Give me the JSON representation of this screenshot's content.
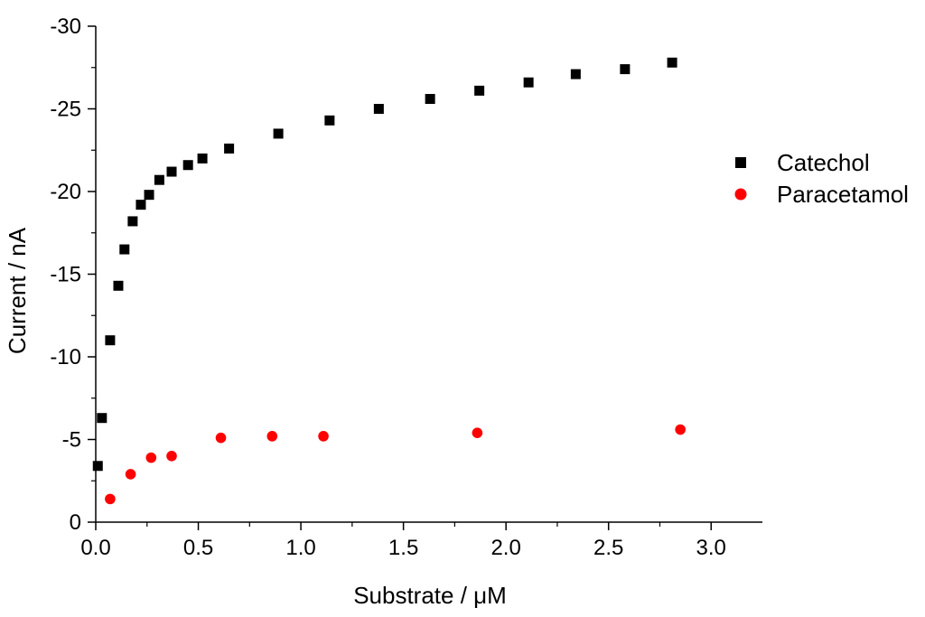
{
  "chart_data": {
    "type": "scatter",
    "title": "",
    "xlabel": "Substrate / μM",
    "ylabel": "Current / nA",
    "xlim": [
      0,
      3.25
    ],
    "ylim": [
      0,
      -30
    ],
    "y_axis_inverted": true,
    "x_ticks": [
      "0.0",
      "0.5",
      "1.0",
      "1.5",
      "2.0",
      "2.5",
      "3.0"
    ],
    "x_tick_values": [
      0,
      0.5,
      1.0,
      1.5,
      2.0,
      2.5,
      3.0
    ],
    "y_ticks": [
      "0",
      "-5",
      "-10",
      "-15",
      "-20",
      "-25",
      "-30"
    ],
    "y_tick_values": [
      0,
      -5,
      -10,
      -15,
      -20,
      -25,
      -30
    ],
    "grid": false,
    "legend_position": "right",
    "series": [
      {
        "name": "Catechol",
        "marker": "square",
        "color": "#000000",
        "x": [
          0.01,
          0.03,
          0.07,
          0.11,
          0.14,
          0.18,
          0.22,
          0.26,
          0.31,
          0.37,
          0.45,
          0.52,
          0.65,
          0.89,
          1.14,
          1.38,
          1.63,
          1.87,
          2.11,
          2.34,
          2.58,
          2.81
        ],
        "y": [
          -3.4,
          -6.3,
          -11.0,
          -14.3,
          -16.5,
          -18.2,
          -19.2,
          -19.8,
          -20.7,
          -21.2,
          -21.6,
          -22.0,
          -22.6,
          -23.5,
          -24.3,
          -25.0,
          -25.6,
          -26.1,
          -26.6,
          -27.1,
          -27.4,
          -27.8
        ]
      },
      {
        "name": "Paracetamol",
        "marker": "circle",
        "color": "#ff0000",
        "x": [
          0.07,
          0.17,
          0.27,
          0.37,
          0.61,
          0.86,
          1.11,
          1.86,
          2.85
        ],
        "y": [
          -1.4,
          -2.9,
          -3.9,
          -4.0,
          -5.1,
          -5.2,
          -5.2,
          -5.4,
          -5.6
        ]
      }
    ]
  }
}
